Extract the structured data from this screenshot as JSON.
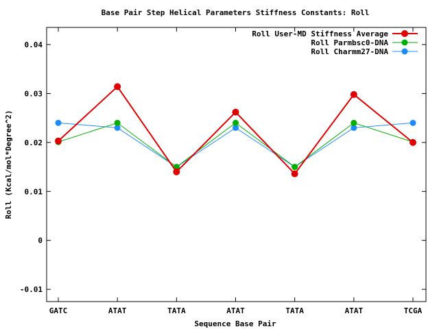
{
  "chart_data": {
    "type": "line",
    "title": "Base Pair Step Helical Parameters Stiffness Constants: Roll",
    "xlabel": "Sequence Base Pair",
    "ylabel": "Roll (Kcal/mol*Degree^2)",
    "categories": [
      "GATC",
      "ATAT",
      "TATA",
      "ATAT",
      "TATA",
      "ATAT",
      "TCGA"
    ],
    "yticks": [
      "0.04",
      "0.03",
      "0.02",
      "0.01",
      "0",
      "-0.01"
    ],
    "ylim": [
      -0.0125,
      0.0435
    ],
    "grid": false,
    "legend_position": "top-right",
    "series": [
      {
        "name": "Roll User-MD Stiffness Average",
        "color": "#e00000",
        "values": [
          0.0203,
          0.0314,
          0.014,
          0.0262,
          0.0136,
          0.0298,
          0.02
        ]
      },
      {
        "name": "Roll Parmbsc0-DNA",
        "color": "#00b000",
        "values": [
          0.0201,
          0.024,
          0.015,
          0.024,
          0.015,
          0.024,
          0.0201
        ]
      },
      {
        "name": "Roll Charmm27-DNA",
        "color": "#1a8cff",
        "values": [
          0.024,
          0.023,
          0.015,
          0.023,
          0.015,
          0.023,
          0.024
        ]
      }
    ]
  }
}
